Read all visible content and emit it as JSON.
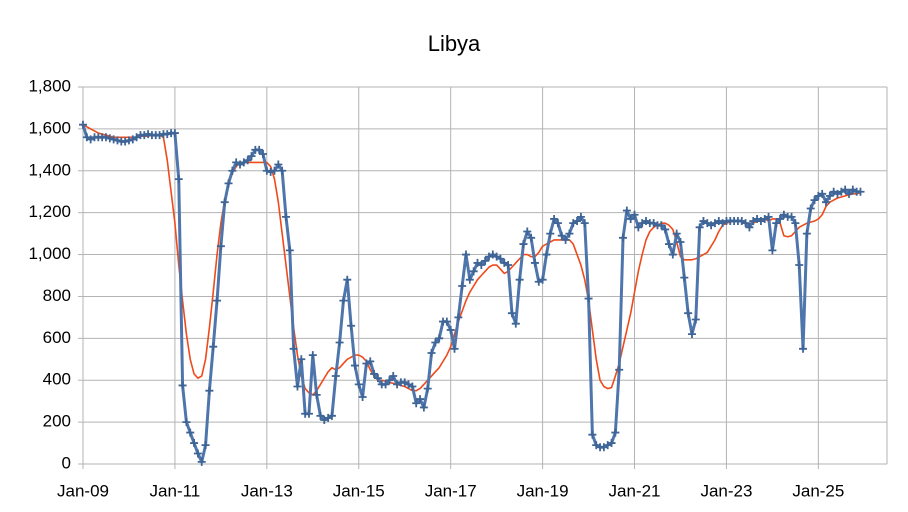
{
  "chart_data": {
    "type": "line",
    "title": "Libya",
    "categories": [
      "Jan-09",
      null,
      null,
      null,
      null,
      null,
      null,
      null,
      null,
      null,
      null,
      null,
      null,
      null,
      null,
      null,
      null,
      null,
      null,
      null,
      null,
      null,
      null,
      null,
      "Jan-11",
      null,
      null,
      null,
      null,
      null,
      null,
      null,
      null,
      null,
      null,
      null,
      null,
      null,
      null,
      null,
      null,
      null,
      null,
      null,
      null,
      null,
      null,
      null,
      "Jan-13",
      null,
      null,
      null,
      null,
      null,
      null,
      null,
      null,
      null,
      null,
      null,
      null,
      null,
      null,
      null,
      null,
      null,
      null,
      null,
      null,
      null,
      null,
      null,
      "Jan-15",
      null,
      null,
      null,
      null,
      null,
      null,
      null,
      null,
      null,
      null,
      null,
      null,
      null,
      null,
      null,
      null,
      null,
      null,
      null,
      null,
      null,
      null,
      null,
      "Jan-17",
      null,
      null,
      null,
      null,
      null,
      null,
      null,
      null,
      null,
      null,
      null,
      null,
      null,
      null,
      null,
      null,
      null,
      null,
      null,
      null,
      null,
      null,
      null,
      "Jan-19",
      null,
      null,
      null,
      null,
      null,
      null,
      null,
      null,
      null,
      null,
      null,
      null,
      null,
      null,
      null,
      null,
      null,
      null,
      null,
      null,
      null,
      null,
      null,
      "Jan-21",
      null,
      null,
      null,
      null,
      null,
      null,
      null,
      null,
      null,
      null,
      null,
      null,
      null,
      null,
      null,
      null,
      null,
      null,
      null,
      null,
      null,
      null,
      null,
      "Jan-23",
      null,
      null,
      null,
      null,
      null,
      null,
      null,
      null,
      null,
      null,
      null,
      null,
      null,
      null,
      null,
      null,
      null,
      null,
      null,
      null,
      null,
      null,
      null,
      "Jan-25",
      null,
      null,
      null,
      null,
      null,
      null,
      null,
      null,
      null,
      null,
      null
    ],
    "series": [
      {
        "color": "#ef4a1a",
        "markers": false,
        "width": 1.6,
        "values": [
          1620,
          1610,
          1600,
          1590,
          1580,
          1575,
          1570,
          1565,
          1560,
          1560,
          1560,
          1560,
          1560,
          1560,
          1560,
          1565,
          1565,
          1565,
          1570,
          1570,
          1570,
          1560,
          1450,
          1300,
          1150,
          950,
          780,
          620,
          500,
          430,
          410,
          420,
          500,
          650,
          820,
          1000,
          1150,
          1260,
          1340,
          1390,
          1420,
          1440,
          1440,
          1440,
          1440,
          1440,
          1440,
          1440,
          1440,
          1420,
          1360,
          1250,
          1100,
          950,
          800,
          650,
          520,
          420,
          360,
          340,
          330,
          350,
          380,
          410,
          440,
          460,
          450,
          460,
          480,
          500,
          510,
          520,
          520,
          510,
          490,
          450,
          420,
          400,
          400,
          395,
          390,
          385,
          380,
          375,
          370,
          360,
          350,
          350,
          360,
          380,
          400,
          420,
          440,
          460,
          490,
          520,
          560,
          620,
          680,
          730,
          780,
          820,
          850,
          880,
          900,
          920,
          940,
          950,
          950,
          930,
          910,
          920,
          940,
          960,
          980,
          1000,
          1000,
          990,
          990,
          1010,
          1040,
          1050,
          1060,
          1070,
          1070,
          1070,
          1070,
          1070,
          1050,
          1000,
          950,
          880,
          780,
          640,
          500,
          400,
          370,
          360,
          365,
          420,
          480,
          560,
          640,
          720,
          820,
          920,
          1000,
          1070,
          1110,
          1130,
          1140,
          1150,
          1150,
          1140,
          1120,
          1060,
          990,
          975,
          975,
          975,
          980,
          990,
          1000,
          1010,
          1040,
          1070,
          1110,
          1140,
          1150,
          1155,
          1160,
          1160,
          1155,
          1150,
          1150,
          1150,
          1160,
          1170,
          1170,
          1160,
          1170,
          1170,
          1150,
          1090,
          1085,
          1090,
          1110,
          1130,
          1140,
          1150,
          1155,
          1160,
          1170,
          1190,
          1230,
          1250,
          1260,
          1270,
          1275,
          1280,
          1285,
          1290,
          1290,
          1295
        ]
      },
      {
        "color": "#4e76ad",
        "markers": true,
        "width": 3,
        "values": [
          1620,
          1560,
          1550,
          1560,
          1560,
          1560,
          1560,
          1555,
          1550,
          1545,
          1540,
          1540,
          1545,
          1550,
          1560,
          1570,
          1570,
          1575,
          1570,
          1570,
          1570,
          1575,
          1575,
          1580,
          1580,
          1360,
          375,
          200,
          150,
          100,
          50,
          10,
          90,
          350,
          560,
          780,
          1040,
          1250,
          1340,
          1400,
          1440,
          1430,
          1440,
          1450,
          1470,
          1500,
          1500,
          1480,
          1400,
          1395,
          1400,
          1430,
          1400,
          1180,
          1020,
          550,
          370,
          500,
          240,
          240,
          520,
          330,
          230,
          210,
          220,
          230,
          420,
          580,
          780,
          880,
          660,
          470,
          380,
          320,
          480,
          490,
          430,
          410,
          380,
          380,
          400,
          420,
          380,
          390,
          390,
          380,
          370,
          290,
          310,
          270,
          360,
          530,
          580,
          600,
          680,
          680,
          640,
          550,
          700,
          850,
          1000,
          880,
          920,
          960,
          950,
          970,
          990,
          1000,
          990,
          980,
          960,
          950,
          720,
          670,
          880,
          1050,
          1110,
          1080,
          960,
          870,
          880,
          1000,
          1100,
          1170,
          1150,
          1090,
          1070,
          1100,
          1150,
          1160,
          1180,
          1150,
          790,
          140,
          90,
          80,
          80,
          90,
          100,
          150,
          450,
          1080,
          1210,
          1170,
          1190,
          1130,
          1150,
          1160,
          1150,
          1150,
          1140,
          1140,
          1120,
          1050,
          1000,
          1100,
          1060,
          890,
          720,
          620,
          690,
          1130,
          1160,
          1150,
          1140,
          1150,
          1160,
          1150,
          1160,
          1160,
          1160,
          1160,
          1160,
          1150,
          1130,
          1160,
          1170,
          1160,
          1170,
          1180,
          1020,
          1150,
          1170,
          1190,
          1180,
          1180,
          1150,
          950,
          550,
          1100,
          1220,
          1260,
          1280,
          1290,
          1250,
          1280,
          1300,
          1290,
          1300,
          1310,
          1290,
          1310,
          1300,
          1300
        ]
      }
    ],
    "ylim": [
      0,
      1800
    ],
    "yticks": [
      0,
      200,
      400,
      600,
      800,
      {
        "value": 1000,
        "label": "1,000"
      },
      {
        "value": 1200,
        "label": "1,200"
      },
      {
        "value": 1400,
        "label": "1,400"
      },
      {
        "value": 1600,
        "label": "1,600"
      },
      {
        "value": 1800,
        "label": "1,800"
      }
    ],
    "grid": true
  }
}
